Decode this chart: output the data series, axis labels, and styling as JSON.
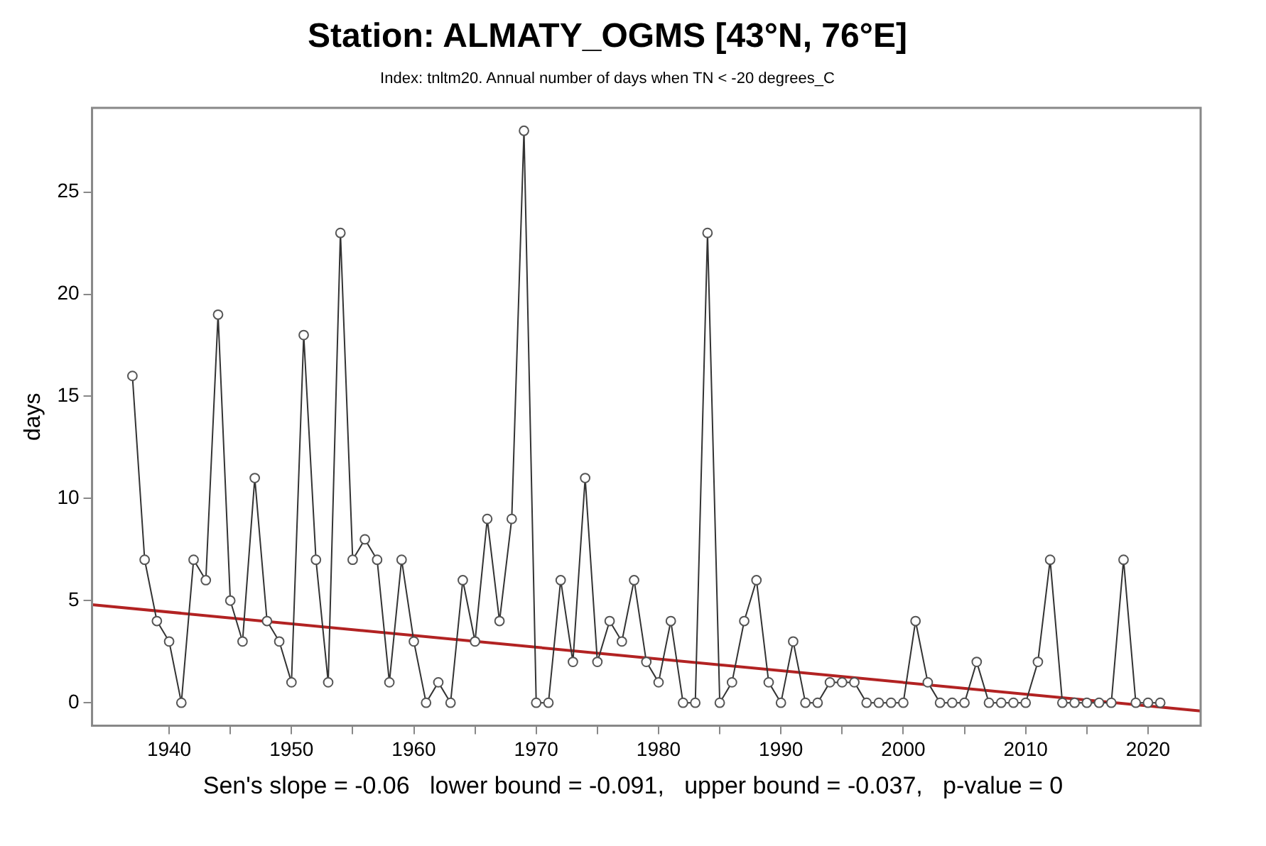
{
  "chart_data": {
    "type": "line",
    "title": "Station: ALMATY_OGMS [43°N, 76°E]",
    "subtitle": "Index: tnltm20. Annual number of days when TN < -20 degrees_C",
    "ylabel": "days",
    "x": [
      1937,
      1938,
      1939,
      1940,
      1941,
      1942,
      1943,
      1944,
      1945,
      1946,
      1947,
      1948,
      1949,
      1950,
      1951,
      1952,
      1953,
      1954,
      1955,
      1956,
      1957,
      1958,
      1959,
      1960,
      1961,
      1962,
      1963,
      1964,
      1965,
      1966,
      1967,
      1968,
      1969,
      1970,
      1971,
      1972,
      1973,
      1974,
      1975,
      1976,
      1977,
      1978,
      1979,
      1980,
      1981,
      1982,
      1983,
      1984,
      1985,
      1986,
      1987,
      1988,
      1989,
      1990,
      1991,
      1992,
      1993,
      1994,
      1995,
      1996,
      1997,
      1998,
      1999,
      2000,
      2001,
      2002,
      2003,
      2004,
      2005,
      2006,
      2007,
      2008,
      2009,
      2010,
      2011,
      2012,
      2013,
      2014,
      2015,
      2016,
      2017,
      2018,
      2019,
      2020,
      2021
    ],
    "series": [
      {
        "color": "#333333",
        "marker": "circle",
        "values": [
          16,
          7,
          4,
          3,
          0,
          7,
          6,
          19,
          5,
          3,
          11,
          4,
          3,
          1,
          18,
          7,
          1,
          23,
          7,
          8,
          7,
          1,
          7,
          3,
          0,
          1,
          0,
          6,
          3,
          9,
          4,
          9,
          28,
          0,
          0,
          6,
          2,
          11,
          2,
          4,
          3,
          6,
          2,
          1,
          4,
          0,
          0,
          23,
          0,
          1,
          4,
          6,
          1,
          0,
          3,
          0,
          0,
          1,
          1,
          1,
          0,
          0,
          0,
          0,
          4,
          1,
          0,
          0,
          0,
          2,
          0,
          0,
          0,
          0,
          2,
          7,
          0,
          0,
          0,
          0,
          0,
          7,
          0,
          0,
          0
        ]
      },
      {
        "type": "line",
        "color": "#b22222",
        "marker": "none",
        "x": [
          1933.7,
          2024.3
        ],
        "values": [
          4.8,
          -0.4
        ]
      }
    ],
    "xlim": [
      1933.7,
      2024.3
    ],
    "xticks": [
      1940,
      {
        "value": 1945,
        "label": null
      },
      1950,
      {
        "value": 1955,
        "label": null
      },
      1960,
      {
        "value": 1965,
        "label": null
      },
      1970,
      {
        "value": 1975,
        "label": null
      },
      1980,
      {
        "value": 1985,
        "label": null
      },
      1990,
      {
        "value": 1995,
        "label": null
      },
      2000,
      {
        "value": 2005,
        "label": null
      },
      2010,
      {
        "value": 2015,
        "label": null
      },
      2020
    ],
    "ylim": [
      -1.12,
      29.12
    ],
    "yticks": [
      0,
      5,
      10,
      15,
      20,
      25
    ],
    "grid": false,
    "legend": false,
    "annotations": [
      "Sen's slope = -0.06   lower bound = -0.091,   upper bound = -0.037,   p-value = 0"
    ]
  }
}
